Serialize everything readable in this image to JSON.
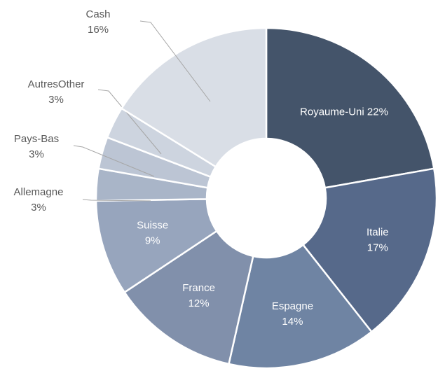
{
  "chart_data": {
    "type": "donut",
    "categories": [
      "Royaume-Uni",
      "Italie",
      "Espagne",
      "France",
      "Suisse",
      "Allemagne",
      "Pays-Bas",
      "AutresOther",
      "Cash"
    ],
    "values": [
      22,
      17,
      14,
      12,
      9,
      3,
      3,
      3,
      16
    ],
    "value_labels": [
      "22%",
      "17%",
      "14%",
      "12%",
      "9%",
      "3%",
      "3%",
      "3%",
      "16%"
    ],
    "colors": [
      "#44546a",
      "#56698a",
      "#6f84a3",
      "#8190ab",
      "#97a5bd",
      "#a9b5c8",
      "#bcc5d4",
      "#cdd4df",
      "#d9dee6"
    ]
  }
}
